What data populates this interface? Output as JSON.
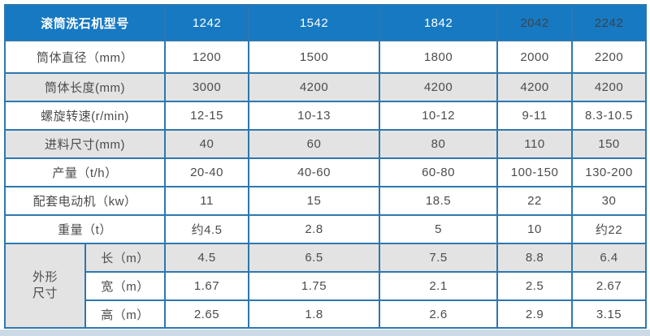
{
  "colors": {
    "header_bg": "#1779c2",
    "border_blue": "#2e77ae",
    "shaded_row_bg": "#e3e3e3",
    "body_text": "#4c4c4c",
    "header_text_light": "#ffffff",
    "header_text_dark": "#3c4348",
    "bottom_strip": "#ccdae6"
  },
  "chart_data": {
    "type": "table",
    "title": "滚筒洗石机型号",
    "header": {
      "label": "滚筒洗石机型号",
      "models": [
        "1242",
        "1542",
        "1842",
        "2042",
        "2242"
      ],
      "model_text_colors": [
        "#ffffff",
        "#ffffff",
        "#ffffff",
        "#3c4348",
        "#3c4348"
      ]
    },
    "rows": [
      {
        "label": "筒体直径（mm）",
        "shaded": false,
        "values": [
          "1200",
          "1500",
          "1800",
          "2000",
          "2200"
        ]
      },
      {
        "label": "筒体长度(mm)",
        "shaded": true,
        "values": [
          "3000",
          "4200",
          "4200",
          "4200",
          "4200"
        ]
      },
      {
        "label": "螺旋转速(r/min)",
        "shaded": false,
        "values": [
          "12-15",
          "10-13",
          "10-12",
          "9-11",
          "8.3-10.5"
        ]
      },
      {
        "label": "进料尺寸(mm)",
        "shaded": true,
        "values": [
          "40",
          "60",
          "80",
          "110",
          "150"
        ]
      },
      {
        "label": "产量（t/h）",
        "shaded": false,
        "values": [
          "20-40",
          "40-60",
          "60-80",
          "100-150",
          "130-200"
        ]
      },
      {
        "label": "配套电动机（kw）",
        "shaded": false,
        "values": [
          "11",
          "15",
          "18.5",
          "22",
          "30"
        ]
      },
      {
        "label": "重量（t）",
        "shaded": false,
        "values": [
          "约4.5",
          "2.8",
          "5",
          "10",
          "约22"
        ]
      }
    ],
    "dimension_group": {
      "label_line1": "外形",
      "label_line2": "尺寸",
      "rows": [
        {
          "label": "长（m）",
          "shaded": true,
          "values": [
            "4.5",
            "6.5",
            "7.5",
            "8.8",
            "6.4"
          ]
        },
        {
          "label": "宽（m）",
          "shaded": false,
          "values": [
            "1.67",
            "1.75",
            "2.1",
            "2.5",
            "2.67"
          ]
        },
        {
          "label": "高（m）",
          "shaded": false,
          "values": [
            "2.65",
            "1.8",
            "2.6",
            "2.9",
            "3.15"
          ]
        }
      ]
    }
  }
}
